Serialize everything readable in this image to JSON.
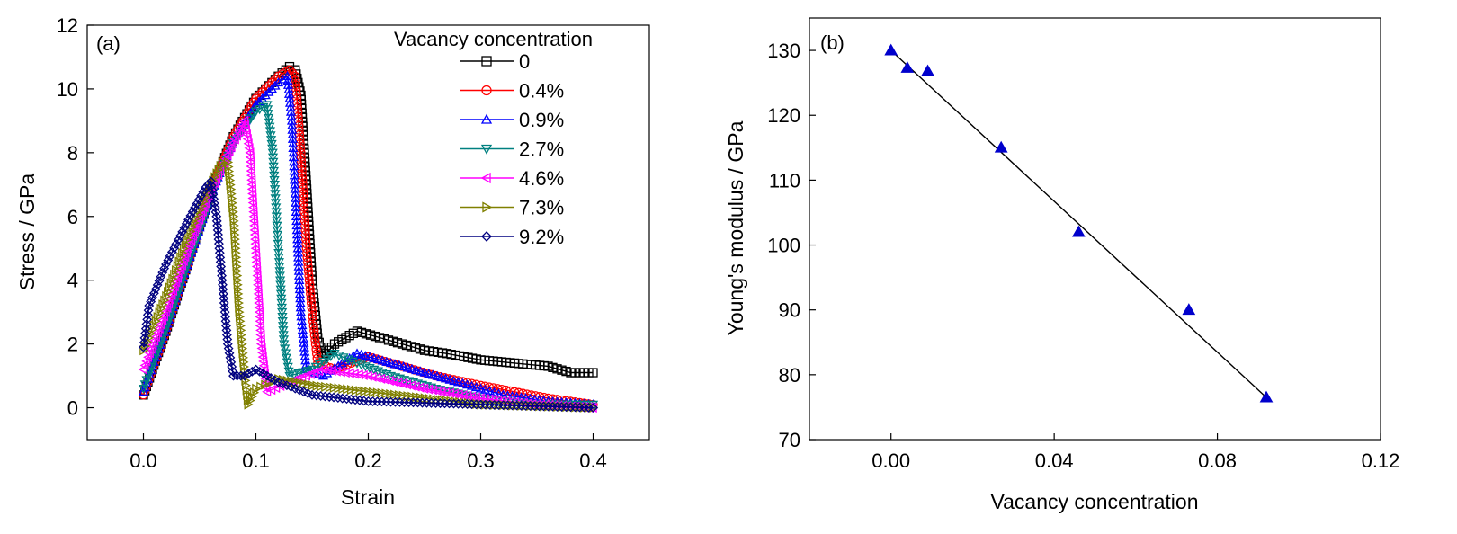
{
  "chart_data": [
    {
      "panel": "(a)",
      "type": "line",
      "xlabel": "Strain",
      "ylabel": "Stress / GPa",
      "xlim": [
        -0.05,
        0.45
      ],
      "ylim": [
        -1,
        12
      ],
      "xticks": [
        0.0,
        0.1,
        0.2,
        0.3,
        0.4
      ],
      "xtick_labels": [
        "0.0",
        "0.1",
        "0.2",
        "0.3",
        "0.4"
      ],
      "yticks": [
        0,
        2,
        4,
        6,
        8,
        10,
        12
      ],
      "ytick_labels": [
        "0",
        "2",
        "4",
        "6",
        "8",
        "10",
        "12"
      ],
      "grid": false,
      "legend_title": "Vacancy concentration",
      "legend_position": "top-right",
      "series": [
        {
          "name": "0",
          "color": "#000000",
          "marker": "square",
          "points": [
            [
              0,
              0.4
            ],
            [
              0.02,
              2.4
            ],
            [
              0.04,
              4.6
            ],
            [
              0.06,
              6.8
            ],
            [
              0.08,
              8.5
            ],
            [
              0.1,
              9.7
            ],
            [
              0.12,
              10.4
            ],
            [
              0.13,
              10.7
            ],
            [
              0.135,
              10.6
            ],
            [
              0.14,
              9.8
            ],
            [
              0.145,
              7.0
            ],
            [
              0.15,
              4.0
            ],
            [
              0.155,
              2.2
            ],
            [
              0.16,
              1.6
            ],
            [
              0.17,
              2.0
            ],
            [
              0.19,
              2.4
            ],
            [
              0.21,
              2.2
            ],
            [
              0.23,
              2.0
            ],
            [
              0.25,
              1.8
            ],
            [
              0.27,
              1.7
            ],
            [
              0.3,
              1.5
            ],
            [
              0.33,
              1.4
            ],
            [
              0.36,
              1.3
            ],
            [
              0.38,
              1.1
            ],
            [
              0.4,
              1.1
            ]
          ]
        },
        {
          "name": "0.4%",
          "color": "#ff0000",
          "marker": "circle",
          "points": [
            [
              0,
              0.4
            ],
            [
              0.02,
              2.4
            ],
            [
              0.04,
              4.6
            ],
            [
              0.06,
              6.8
            ],
            [
              0.08,
              8.5
            ],
            [
              0.1,
              9.7
            ],
            [
              0.12,
              10.4
            ],
            [
              0.13,
              10.6
            ],
            [
              0.135,
              10.4
            ],
            [
              0.14,
              8.0
            ],
            [
              0.145,
              5.0
            ],
            [
              0.15,
              3.0
            ],
            [
              0.155,
              1.4
            ],
            [
              0.17,
              1.2
            ],
            [
              0.2,
              1.6
            ],
            [
              0.23,
              1.3
            ],
            [
              0.26,
              1.0
            ],
            [
              0.3,
              0.7
            ],
            [
              0.33,
              0.5
            ],
            [
              0.36,
              0.3
            ],
            [
              0.4,
              0.1
            ]
          ]
        },
        {
          "name": "0.9%",
          "color": "#0000ff",
          "marker": "triangle-up",
          "points": [
            [
              0,
              0.5
            ],
            [
              0.02,
              2.5
            ],
            [
              0.04,
              4.6
            ],
            [
              0.06,
              6.7
            ],
            [
              0.08,
              8.4
            ],
            [
              0.1,
              9.5
            ],
            [
              0.12,
              10.2
            ],
            [
              0.128,
              10.4
            ],
            [
              0.132,
              9.0
            ],
            [
              0.136,
              6.0
            ],
            [
              0.14,
              3.0
            ],
            [
              0.145,
              1.2
            ],
            [
              0.16,
              1.0
            ],
            [
              0.19,
              1.7
            ],
            [
              0.22,
              1.4
            ],
            [
              0.25,
              1.1
            ],
            [
              0.28,
              0.8
            ],
            [
              0.32,
              0.4
            ],
            [
              0.36,
              0.2
            ],
            [
              0.4,
              0.1
            ]
          ]
        },
        {
          "name": "2.7%",
          "color": "#008080",
          "marker": "triangle-down",
          "points": [
            [
              0,
              0.6
            ],
            [
              0.02,
              2.5
            ],
            [
              0.04,
              4.6
            ],
            [
              0.06,
              6.6
            ],
            [
              0.08,
              8.3
            ],
            [
              0.1,
              9.3
            ],
            [
              0.11,
              9.5
            ],
            [
              0.115,
              8.0
            ],
            [
              0.12,
              5.0
            ],
            [
              0.125,
              2.0
            ],
            [
              0.13,
              1.0
            ],
            [
              0.15,
              1.2
            ],
            [
              0.17,
              1.7
            ],
            [
              0.19,
              1.4
            ],
            [
              0.22,
              1.0
            ],
            [
              0.26,
              0.6
            ],
            [
              0.3,
              0.3
            ],
            [
              0.35,
              0.1
            ],
            [
              0.4,
              0.1
            ]
          ]
        },
        {
          "name": "4.6%",
          "color": "#ff00ff",
          "marker": "triangle-left",
          "points": [
            [
              0,
              1.2
            ],
            [
              0.02,
              3.0
            ],
            [
              0.04,
              5.0
            ],
            [
              0.06,
              6.8
            ],
            [
              0.08,
              8.3
            ],
            [
              0.09,
              9.0
            ],
            [
              0.095,
              8.0
            ],
            [
              0.1,
              5.0
            ],
            [
              0.105,
              2.0
            ],
            [
              0.11,
              0.5
            ],
            [
              0.13,
              0.8
            ],
            [
              0.16,
              1.2
            ],
            [
              0.2,
              1.0
            ],
            [
              0.25,
              0.6
            ],
            [
              0.3,
              0.3
            ],
            [
              0.35,
              0.1
            ],
            [
              0.4,
              0.0
            ]
          ]
        },
        {
          "name": "7.3%",
          "color": "#808000",
          "marker": "triangle-right",
          "points": [
            [
              0,
              1.8
            ],
            [
              0.02,
              3.5
            ],
            [
              0.04,
              5.4
            ],
            [
              0.06,
              7.0
            ],
            [
              0.07,
              7.7
            ],
            [
              0.075,
              7.7
            ],
            [
              0.08,
              6.0
            ],
            [
              0.085,
              3.0
            ],
            [
              0.09,
              1.0
            ],
            [
              0.093,
              0.1
            ],
            [
              0.1,
              0.6
            ],
            [
              0.12,
              0.9
            ],
            [
              0.15,
              0.7
            ],
            [
              0.2,
              0.5
            ],
            [
              0.25,
              0.3
            ],
            [
              0.3,
              0.1
            ],
            [
              0.4,
              0.0
            ]
          ]
        },
        {
          "name": "9.2%",
          "color": "#000080",
          "marker": "diamond",
          "points": [
            [
              0,
              1.9
            ],
            [
              0.005,
              3.2
            ],
            [
              0.02,
              4.5
            ],
            [
              0.04,
              5.9
            ],
            [
              0.055,
              6.9
            ],
            [
              0.06,
              7.1
            ],
            [
              0.065,
              6.0
            ],
            [
              0.07,
              4.0
            ],
            [
              0.075,
              2.0
            ],
            [
              0.08,
              1.0
            ],
            [
              0.09,
              1.0
            ],
            [
              0.1,
              1.2
            ],
            [
              0.12,
              0.8
            ],
            [
              0.15,
              0.4
            ],
            [
              0.2,
              0.2
            ],
            [
              0.3,
              0.1
            ],
            [
              0.4,
              0.0
            ]
          ]
        }
      ]
    },
    {
      "panel": "(b)",
      "type": "scatter",
      "xlabel": "Vacancy concentration",
      "ylabel": "Young's modulus / GPa",
      "xlim": [
        -0.02,
        0.12
      ],
      "ylim": [
        70,
        135
      ],
      "xticks": [
        0.0,
        0.04,
        0.08,
        0.12
      ],
      "xtick_labels": [
        "0.00",
        "0.04",
        "0.08",
        "0.12"
      ],
      "yticks": [
        70,
        80,
        90,
        100,
        110,
        120,
        130
      ],
      "ytick_labels": [
        "70",
        "80",
        "90",
        "100",
        "110",
        "120",
        "130"
      ],
      "grid": false,
      "marker_color": "#0000cc",
      "points": [
        [
          0.0,
          130
        ],
        [
          0.004,
          127.3
        ],
        [
          0.009,
          126.8
        ],
        [
          0.027,
          115
        ],
        [
          0.046,
          102
        ],
        [
          0.073,
          90
        ],
        [
          0.092,
          76.5
        ]
      ],
      "fit_line": [
        [
          0.0,
          130
        ],
        [
          0.092,
          76.5
        ]
      ]
    }
  ]
}
